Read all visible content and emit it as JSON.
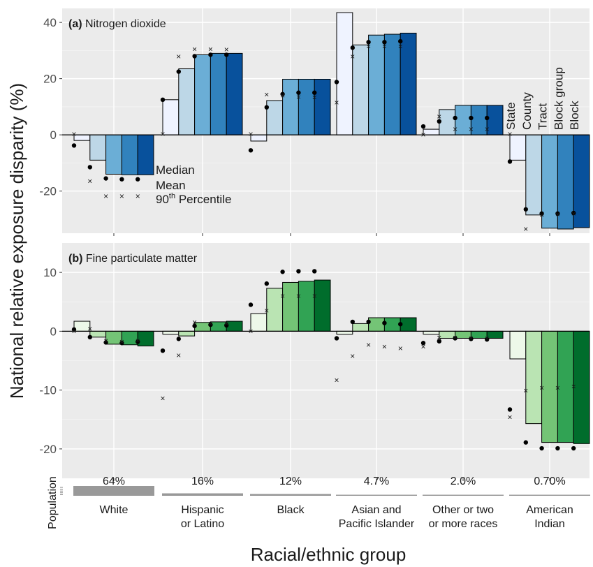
{
  "chart_data": {
    "type": "bar",
    "ylabel": "National relative exposure disparity (%)",
    "xlabel": "Racial/ethnic group",
    "groups": [
      "White",
      "Hispanic\nor Latino",
      "Black",
      "Asian and\nPacific Islander",
      "Other or two\nor more races",
      "American\nIndian"
    ],
    "scales": [
      "State",
      "County",
      "Tract",
      "Block group",
      "Block"
    ],
    "population": {
      "label": "Population",
      "values": [
        "64%",
        "16%",
        "12%",
        "4.7%",
        "2.0%",
        "0.70%"
      ],
      "fractions": [
        0.64,
        0.16,
        0.12,
        0.047,
        0.02,
        0.007
      ]
    },
    "marker_legend": {
      "median": "Median",
      "mean": "Mean",
      "p90_base": "90",
      "p90_sup": "th",
      "p90_rest": " Percentile"
    },
    "panels": [
      {
        "title_bold": "(a)",
        "title": " Nitrogen dioxide",
        "ylim": [
          -35,
          45
        ],
        "yticks": [
          -20,
          0,
          20,
          40
        ],
        "ytick_labels": [
          "-20",
          "0",
          "20",
          "40"
        ],
        "colors": [
          "#eff3ff",
          "#bdd7e7",
          "#6baed6",
          "#3182bd",
          "#08519c"
        ],
        "bars": [
          [
            -2.0,
            -9.0,
            -14.0,
            -14.2,
            -14.2
          ],
          [
            12.5,
            23.5,
            28.5,
            29.0,
            29.0
          ],
          [
            -2.2,
            12.2,
            19.8,
            19.8,
            19.8
          ],
          [
            43.5,
            32.0,
            35.5,
            35.8,
            36.2
          ],
          [
            2.0,
            9.0,
            10.5,
            10.5,
            10.5
          ],
          [
            -9.0,
            -28.5,
            -33.2,
            -33.5,
            -33.0
          ]
        ],
        "median": [
          [
            -3.8,
            -11.5,
            -15.5,
            -15.8,
            -15.8
          ],
          [
            12.5,
            22.5,
            28.0,
            28.5,
            28.5
          ],
          [
            -5.5,
            9.8,
            14.5,
            15.0,
            15.0
          ],
          [
            18.8,
            31.0,
            33.0,
            33.0,
            33.3
          ],
          [
            3.0,
            4.8,
            6.0,
            6.0,
            6.0
          ],
          [
            -9.5,
            -26.5,
            -28.0,
            -28.0,
            -27.8
          ]
        ],
        "p90": [
          [
            0.3,
            -16.5,
            -21.8,
            -21.8,
            -21.8
          ],
          [
            0.3,
            27.8,
            30.5,
            30.5,
            30.3
          ],
          [
            0.3,
            14.3,
            14.0,
            13.5,
            13.3
          ],
          [
            11.5,
            27.8,
            31.5,
            31.5,
            31.5
          ],
          [
            0.0,
            6.5,
            2.0,
            2.0,
            2.0
          ],
          [
            0.3,
            -33.5,
            -28.5,
            -28.3,
            -28.0
          ]
        ]
      },
      {
        "title_bold": "(b)",
        "title": " Fine particulate matter",
        "ylim": [
          -25,
          15
        ],
        "yticks": [
          -20,
          -10,
          0,
          10
        ],
        "ytick_labels": [
          "-20",
          "-10",
          "0",
          "10"
        ],
        "colors": [
          "#edf8e9",
          "#bae4b3",
          "#74c476",
          "#31a354",
          "#006d2c"
        ],
        "bars": [
          [
            1.7,
            -1.0,
            -2.2,
            -2.3,
            -2.5
          ],
          [
            -0.5,
            -0.8,
            1.5,
            1.6,
            1.7
          ],
          [
            3.0,
            7.3,
            8.3,
            8.5,
            8.7
          ],
          [
            -0.5,
            1.3,
            2.3,
            2.3,
            2.3
          ],
          [
            -0.5,
            -1.2,
            -1.2,
            -1.2,
            -1.2
          ],
          [
            -4.7,
            -15.7,
            -18.9,
            -18.9,
            -19.1
          ]
        ],
        "median": [
          [
            0.3,
            -1.0,
            -1.9,
            -2.0,
            -1.8
          ],
          [
            -3.3,
            -1.3,
            0.9,
            1.1,
            1.0
          ],
          [
            4.5,
            8.1,
            10.1,
            10.2,
            10.2
          ],
          [
            -1.2,
            1.6,
            1.6,
            1.4,
            1.2
          ],
          [
            -2.0,
            -1.7,
            -1.2,
            -1.3,
            -1.4
          ],
          [
            -13.3,
            -18.9,
            -19.9,
            -19.9,
            -19.9
          ]
        ],
        "p90": [
          [
            0.0,
            0.4,
            -1.6,
            -1.8,
            -1.6
          ],
          [
            -11.4,
            -4.1,
            1.5,
            1.3,
            1.3
          ],
          [
            0.0,
            3.5,
            6.0,
            6.0,
            6.0
          ],
          [
            -8.3,
            -4.2,
            -2.3,
            -2.6,
            -2.9
          ],
          [
            -2.6,
            -1.1,
            -1.1,
            -1.2,
            -1.2
          ],
          [
            -14.6,
            -10.1,
            -9.6,
            -9.6,
            -9.4
          ]
        ]
      }
    ]
  }
}
